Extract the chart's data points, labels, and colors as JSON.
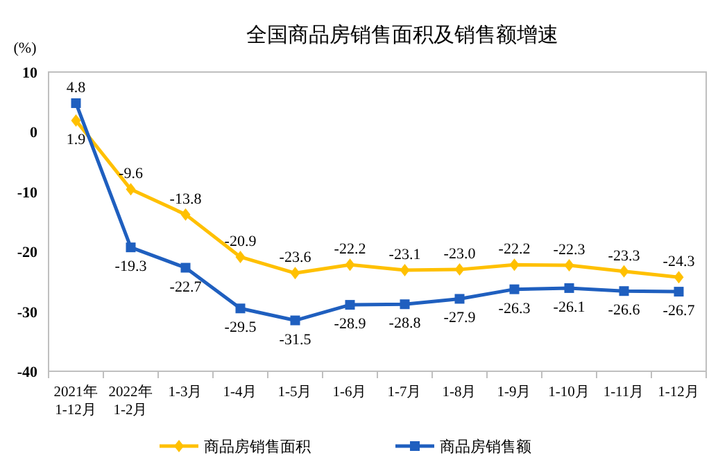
{
  "chart_data": {
    "type": "line",
    "title": "全国商品房销售面积及销售额增速",
    "ylabel": "(%)",
    "categories": [
      "2021年\n1-12月",
      "2022年\n1-2月",
      "1-3月",
      "1-4月",
      "1-5月",
      "1-6月",
      "1-7月",
      "1-8月",
      "1-9月",
      "1-10月",
      "1-11月",
      "1-12月"
    ],
    "series": [
      {
        "name": "商品房销售面积",
        "color": "#ffc000",
        "marker": "diamond",
        "values": [
          1.9,
          -9.6,
          -13.8,
          -20.9,
          -23.6,
          -22.2,
          -23.1,
          -23.0,
          -22.2,
          -22.3,
          -23.3,
          -24.3
        ],
        "value_labels": [
          "1.9",
          "-9.6",
          "-13.8",
          "-20.9",
          "-23.6",
          "-22.2",
          "-23.1",
          "-23.0",
          "-22.2",
          "-22.3",
          "-23.3",
          "-24.3"
        ]
      },
      {
        "name": "商品房销售额",
        "color": "#1f5fbf",
        "marker": "square",
        "values": [
          4.8,
          -19.3,
          -22.7,
          -29.5,
          -31.5,
          -28.9,
          -28.8,
          -27.9,
          -26.3,
          -26.1,
          -26.6,
          -26.7
        ],
        "value_labels": [
          "4.8",
          "-19.3",
          "-22.7",
          "-29.5",
          "-31.5",
          "-28.9",
          "-28.8",
          "-27.9",
          "-26.3",
          "-26.1",
          "-26.6",
          "-26.7"
        ]
      }
    ],
    "ylim": [
      -40,
      10
    ],
    "yticks": [
      -40,
      -30,
      -20,
      -10,
      0,
      10
    ],
    "legend": "bottom",
    "grid": false
  }
}
